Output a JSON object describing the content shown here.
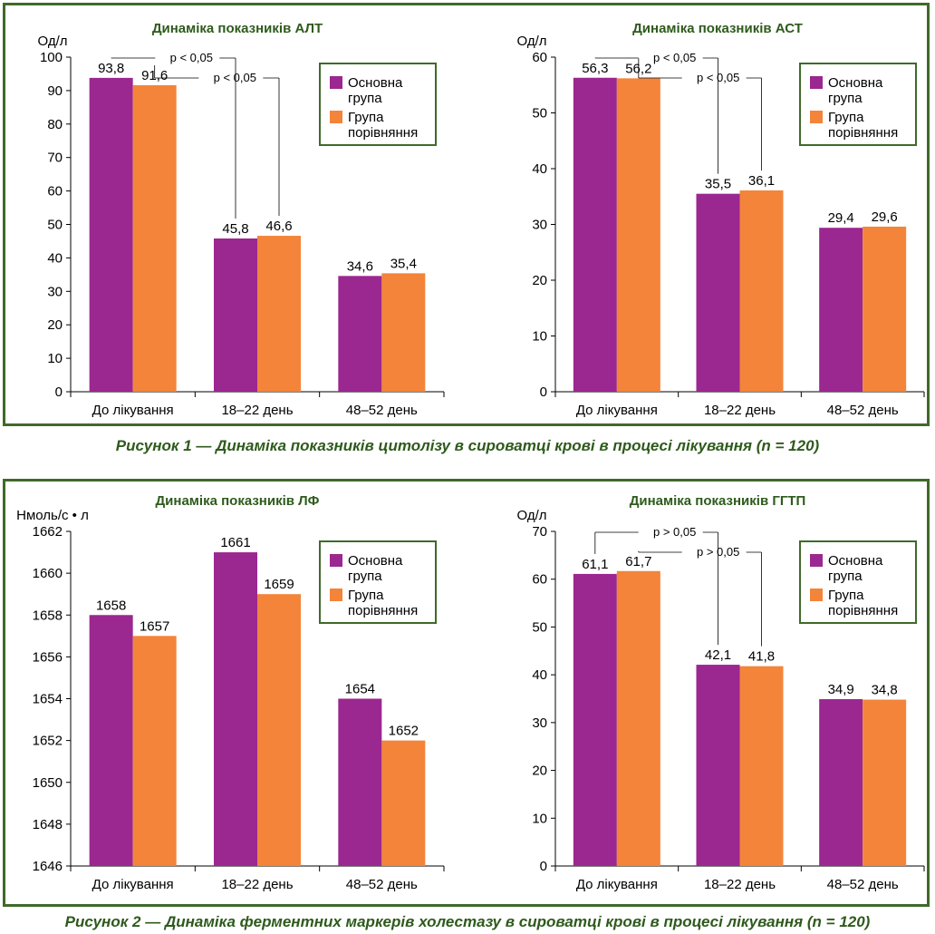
{
  "figures": [
    {
      "caption": "Рисунок 1 — Динаміка показників цитолізу в сироватці крові в процесі лікування (n = 120)"
    },
    {
      "caption": "Рисунок 2 — Динаміка ферментних маркерів холестазу в сироватці крові в процесі лікування (n = 120)"
    }
  ],
  "colors": {
    "main": "#9b2790",
    "comparison": "#f3843a",
    "frame": "#3f6a2a",
    "title": "#2e5a1c"
  },
  "chart_data": [
    {
      "type": "bar",
      "title": "Динаміка показників АЛТ",
      "ylabel": "Од/л",
      "categories": [
        "До лікування",
        "18–22 день",
        "48–52 день"
      ],
      "series": [
        {
          "name": "Основна група",
          "values": [
            93.8,
            45.8,
            34.6
          ],
          "labels": [
            "93,8",
            "45,8",
            "34,6"
          ]
        },
        {
          "name": "Група порівняння",
          "values": [
            91.6,
            46.6,
            35.4
          ],
          "labels": [
            "91,6",
            "46,6",
            "35,4"
          ]
        }
      ],
      "ylim": [
        0,
        100
      ],
      "yticks": [
        0,
        10,
        20,
        30,
        40,
        50,
        60,
        70,
        80,
        90,
        100
      ],
      "legend": "top-right",
      "annotations": [
        "p < 0,05",
        "p < 0,05"
      ]
    },
    {
      "type": "bar",
      "title": "Динаміка показників АСТ",
      "ylabel": "Од/л",
      "categories": [
        "До лікування",
        "18–22 день",
        "48–52 день"
      ],
      "series": [
        {
          "name": "Основна група",
          "values": [
            56.3,
            35.5,
            29.4
          ],
          "labels": [
            "56,3",
            "35,5",
            "29,4"
          ]
        },
        {
          "name": "Група порівняння",
          "values": [
            56.2,
            36.1,
            29.6
          ],
          "labels": [
            "56,2",
            "36,1",
            "29,6"
          ]
        }
      ],
      "ylim": [
        0,
        60
      ],
      "yticks": [
        0,
        10,
        20,
        30,
        40,
        50,
        60
      ],
      "legend": "top-right",
      "annotations": [
        "p < 0,05",
        "p < 0,05"
      ]
    },
    {
      "type": "bar",
      "title": "Динаміка показників ЛФ",
      "ylabel": "Нмоль/с • л",
      "categories": [
        "До лікування",
        "18–22 день",
        "48–52 день"
      ],
      "series": [
        {
          "name": "Основна група",
          "values": [
            1658,
            1661,
            1654
          ],
          "labels": [
            "1658",
            "1661",
            "1654"
          ]
        },
        {
          "name": "Група порівняння",
          "values": [
            1657,
            1659,
            1652
          ],
          "labels": [
            "1657",
            "1659",
            "1652"
          ]
        }
      ],
      "ylim": [
        1646,
        1662
      ],
      "yticks": [
        1646,
        1648,
        1650,
        1652,
        1654,
        1656,
        1658,
        1660,
        1662
      ],
      "legend": "top-right",
      "annotations": []
    },
    {
      "type": "bar",
      "title": "Динаміка показників ГГТП",
      "ylabel": "Од/л",
      "categories": [
        "До лікування",
        "18–22 день",
        "48–52 день"
      ],
      "series": [
        {
          "name": "Основна група",
          "values": [
            61.1,
            42.1,
            34.9
          ],
          "labels": [
            "61,1",
            "42,1",
            "34,9"
          ]
        },
        {
          "name": "Група порівняння",
          "values": [
            61.7,
            41.8,
            34.8
          ],
          "labels": [
            "61,7",
            "41,8",
            "34,8"
          ]
        }
      ],
      "ylim": [
        0,
        70
      ],
      "yticks": [
        0,
        10,
        20,
        30,
        40,
        50,
        60,
        70
      ],
      "legend": "top-right",
      "annotations": [
        "p > 0,05",
        "p > 0,05"
      ]
    }
  ]
}
